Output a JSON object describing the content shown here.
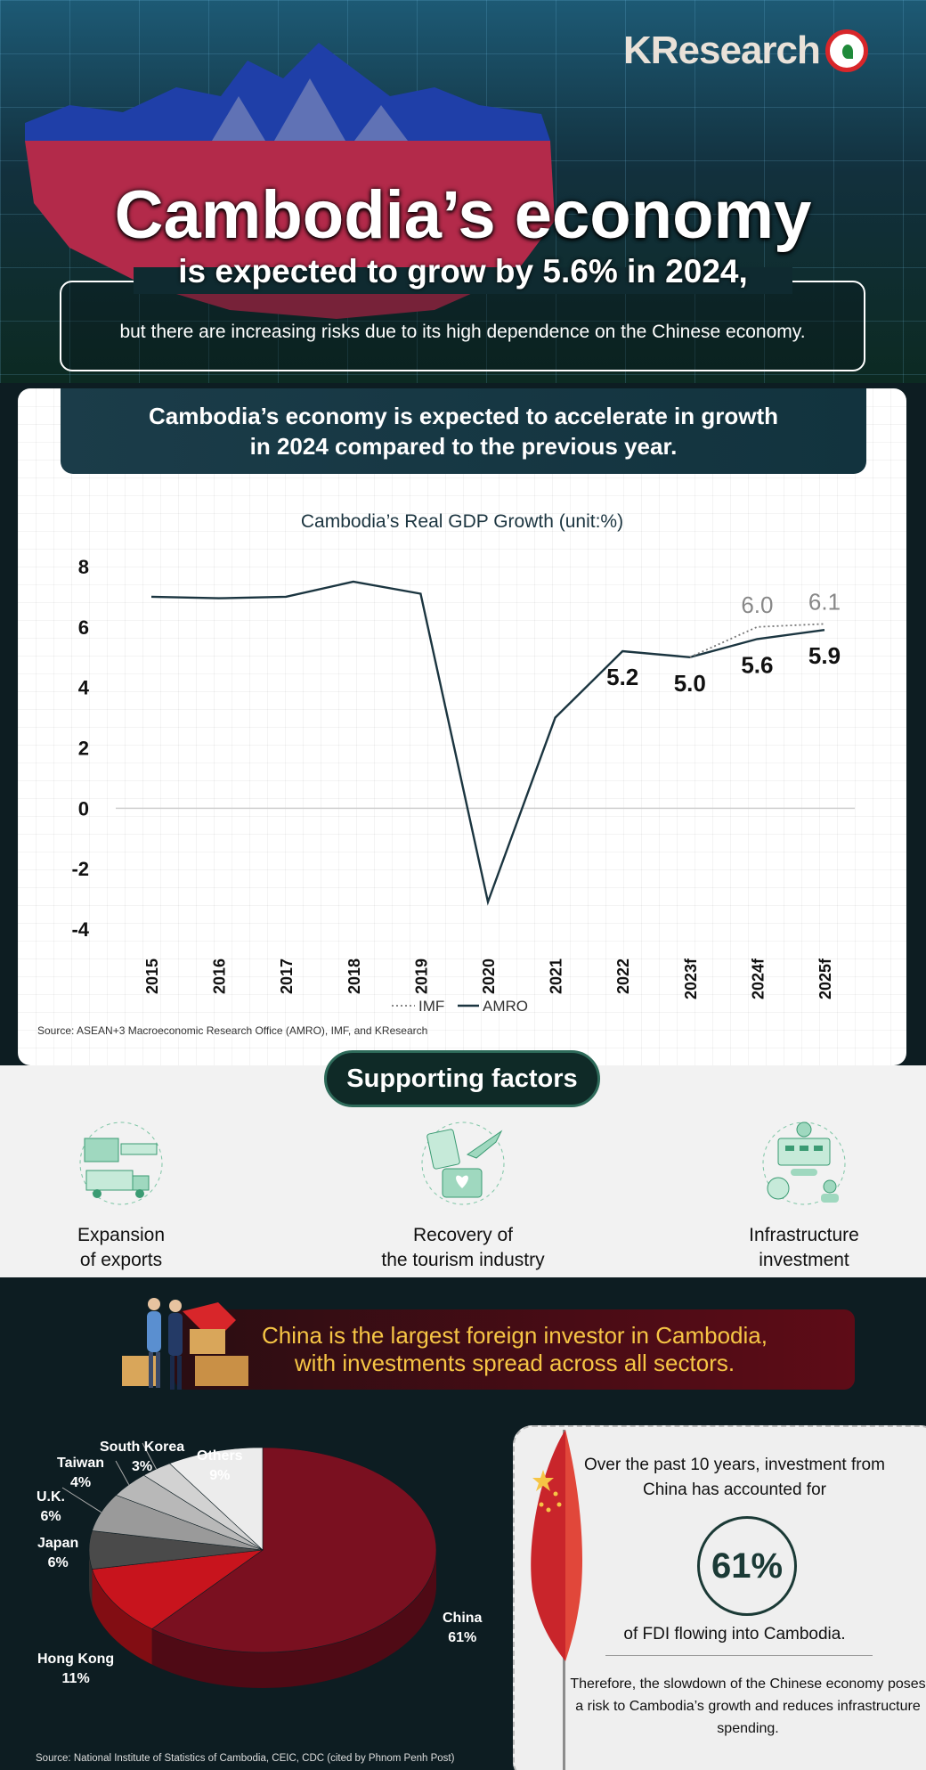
{
  "brand": {
    "name": "KResearch"
  },
  "header": {
    "title": "Cambodia’s economy",
    "subtitle": "is expected to grow by 5.6% in 2024,",
    "note": "but there are increasing risks due to its high dependence on the Chinese economy."
  },
  "chart_section": {
    "banner_line1": "Cambodia’s economy is expected to accelerate in growth",
    "banner_line2": "in 2024 compared to the previous year.",
    "source": "Source: ASEAN+3 Macroeconomic Research Office (AMRO), IMF, and KResearch"
  },
  "chart_data": {
    "type": "line",
    "title": "Cambodia’s Real GDP Growth (unit:%)",
    "categories": [
      "2015",
      "2016",
      "2017",
      "2018",
      "2019",
      "2020",
      "2021",
      "2022",
      "2023f",
      "2024f",
      "2025f"
    ],
    "ylim": [
      -4,
      8
    ],
    "yticks": [
      "8",
      "6",
      "4",
      "2",
      "0",
      "-2",
      "-4"
    ],
    "series": [
      {
        "name": "AMRO",
        "style": "solid",
        "color": "#1b3540",
        "values": [
          7.0,
          6.95,
          7.0,
          7.5,
          7.1,
          -3.1,
          3.0,
          5.2,
          5.0,
          5.6,
          5.9
        ],
        "labels": [
          null,
          null,
          null,
          null,
          null,
          null,
          null,
          "5.2",
          "5.0",
          "5.6",
          "5.9"
        ]
      },
      {
        "name": "IMF",
        "style": "dotted",
        "color": "#777777",
        "values": [
          null,
          null,
          null,
          null,
          null,
          null,
          null,
          null,
          5.0,
          6.0,
          6.1
        ],
        "labels": [
          null,
          null,
          null,
          null,
          null,
          null,
          null,
          null,
          null,
          "6.0",
          "6.1"
        ]
      }
    ],
    "legend": {
      "position": "bottom",
      "items": [
        "IMF",
        "AMRO"
      ]
    },
    "grid": false
  },
  "factors": {
    "heading": "Supporting factors",
    "items": [
      {
        "line1": "Expansion",
        "line2": "of exports",
        "icon": "container-truck-icon"
      },
      {
        "line1": "Recovery of",
        "line2": "the tourism industry",
        "icon": "passport-plane-icon"
      },
      {
        "line1": "Infrastructure",
        "line2": "investment",
        "icon": "infrastructure-gear-icon"
      }
    ]
  },
  "china": {
    "banner_line1": "China is the largest foreign investor in Cambodia,",
    "banner_line2": "with investments spread across all sectors.",
    "pie_data": {
      "type": "pie",
      "slices": [
        {
          "name": "China",
          "value": 61,
          "label": "61%",
          "color": "#7a1020"
        },
        {
          "name": "Hong Kong",
          "value": 11,
          "label": "11%",
          "color": "#c8141d"
        },
        {
          "name": "Japan",
          "value": 6,
          "label": "6%",
          "color": "#4a4a4a"
        },
        {
          "name": "U.K.",
          "value": 6,
          "label": "6%",
          "color": "#9a9a9a"
        },
        {
          "name": "Taiwan",
          "value": 4,
          "label": "4%",
          "color": "#b8b8b8"
        },
        {
          "name": "South Korea",
          "value": 3,
          "label": "3%",
          "color": "#d2d2d2"
        },
        {
          "name": "Others",
          "value": 9,
          "label": "9%",
          "color": "#ececec"
        }
      ]
    },
    "source": "Source: National Institute of Statistics of Cambodia, CEIC, CDC (cited by Phnom Penh Post)",
    "card": {
      "text1": "Over the past 10 years, investment from China has accounted for",
      "highlight": "61%",
      "text2": "of FDI flowing into Cambodia.",
      "text3": "Therefore, the slowdown of the Chinese economy poses a risk to Cambodia’s growth and reduces infrastructure spending."
    }
  }
}
